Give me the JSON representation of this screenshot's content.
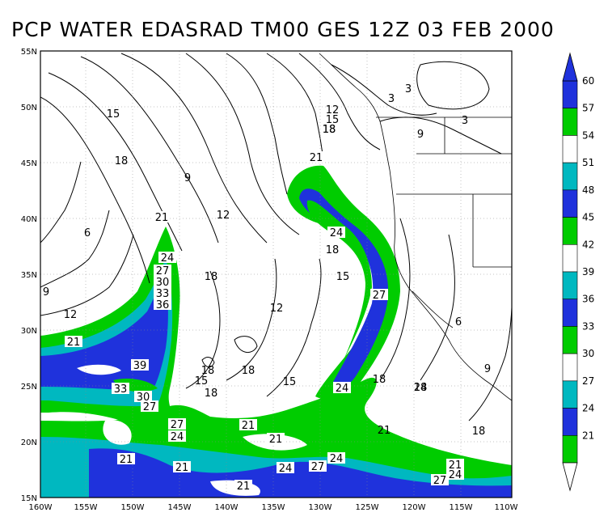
{
  "title": "PCP WATER EDASRAD TM00 GES 12Z 03 FEB 2000",
  "colors": {
    "green": "#00cc00",
    "cyan": "#00b8c0",
    "blue": "#1f32dc",
    "white": "#ffffff",
    "line": "#000000"
  },
  "lat_ticks": [
    "55N",
    "50N",
    "45N",
    "40N",
    "35N",
    "30N",
    "25N",
    "20N",
    "15N"
  ],
  "lon_ticks": [
    "160W",
    "155W",
    "150W",
    "145W",
    "140W",
    "135W",
    "130W",
    "125W",
    "120W",
    "115W",
    "110W"
  ],
  "legend": {
    "levels": [
      "60",
      "57",
      "54",
      "51",
      "48",
      "45",
      "42",
      "39",
      "36",
      "33",
      "30",
      "27",
      "24",
      "21"
    ],
    "bands": [
      {
        "color": "blue"
      },
      {
        "color": "green"
      },
      {
        "color": "white"
      },
      {
        "color": "cyan"
      },
      {
        "color": "blue"
      },
      {
        "color": "green"
      },
      {
        "color": "white"
      },
      {
        "color": "cyan"
      },
      {
        "color": "blue"
      },
      {
        "color": "green"
      },
      {
        "color": "white"
      },
      {
        "color": "cyan"
      },
      {
        "color": "blue"
      },
      {
        "color": "green"
      }
    ]
  },
  "contour_labels": [
    "15",
    "18",
    "6",
    "9",
    "12",
    "21",
    "24",
    "27",
    "30",
    "33",
    "36",
    "39",
    "33",
    "30",
    "27",
    "21",
    "9",
    "12",
    "18",
    "12",
    "18",
    "15",
    "18",
    "15",
    "18",
    "18",
    "21",
    "24",
    "24",
    "27",
    "18",
    "15",
    "21",
    "24",
    "12",
    "15",
    "18",
    "9",
    "3",
    "3",
    "3",
    "6",
    "9",
    "18",
    "18",
    "21",
    "18",
    "21",
    "21",
    "27",
    "24",
    "27",
    "24",
    "21",
    "24",
    "27",
    "21",
    "21",
    "24",
    "21"
  ]
}
